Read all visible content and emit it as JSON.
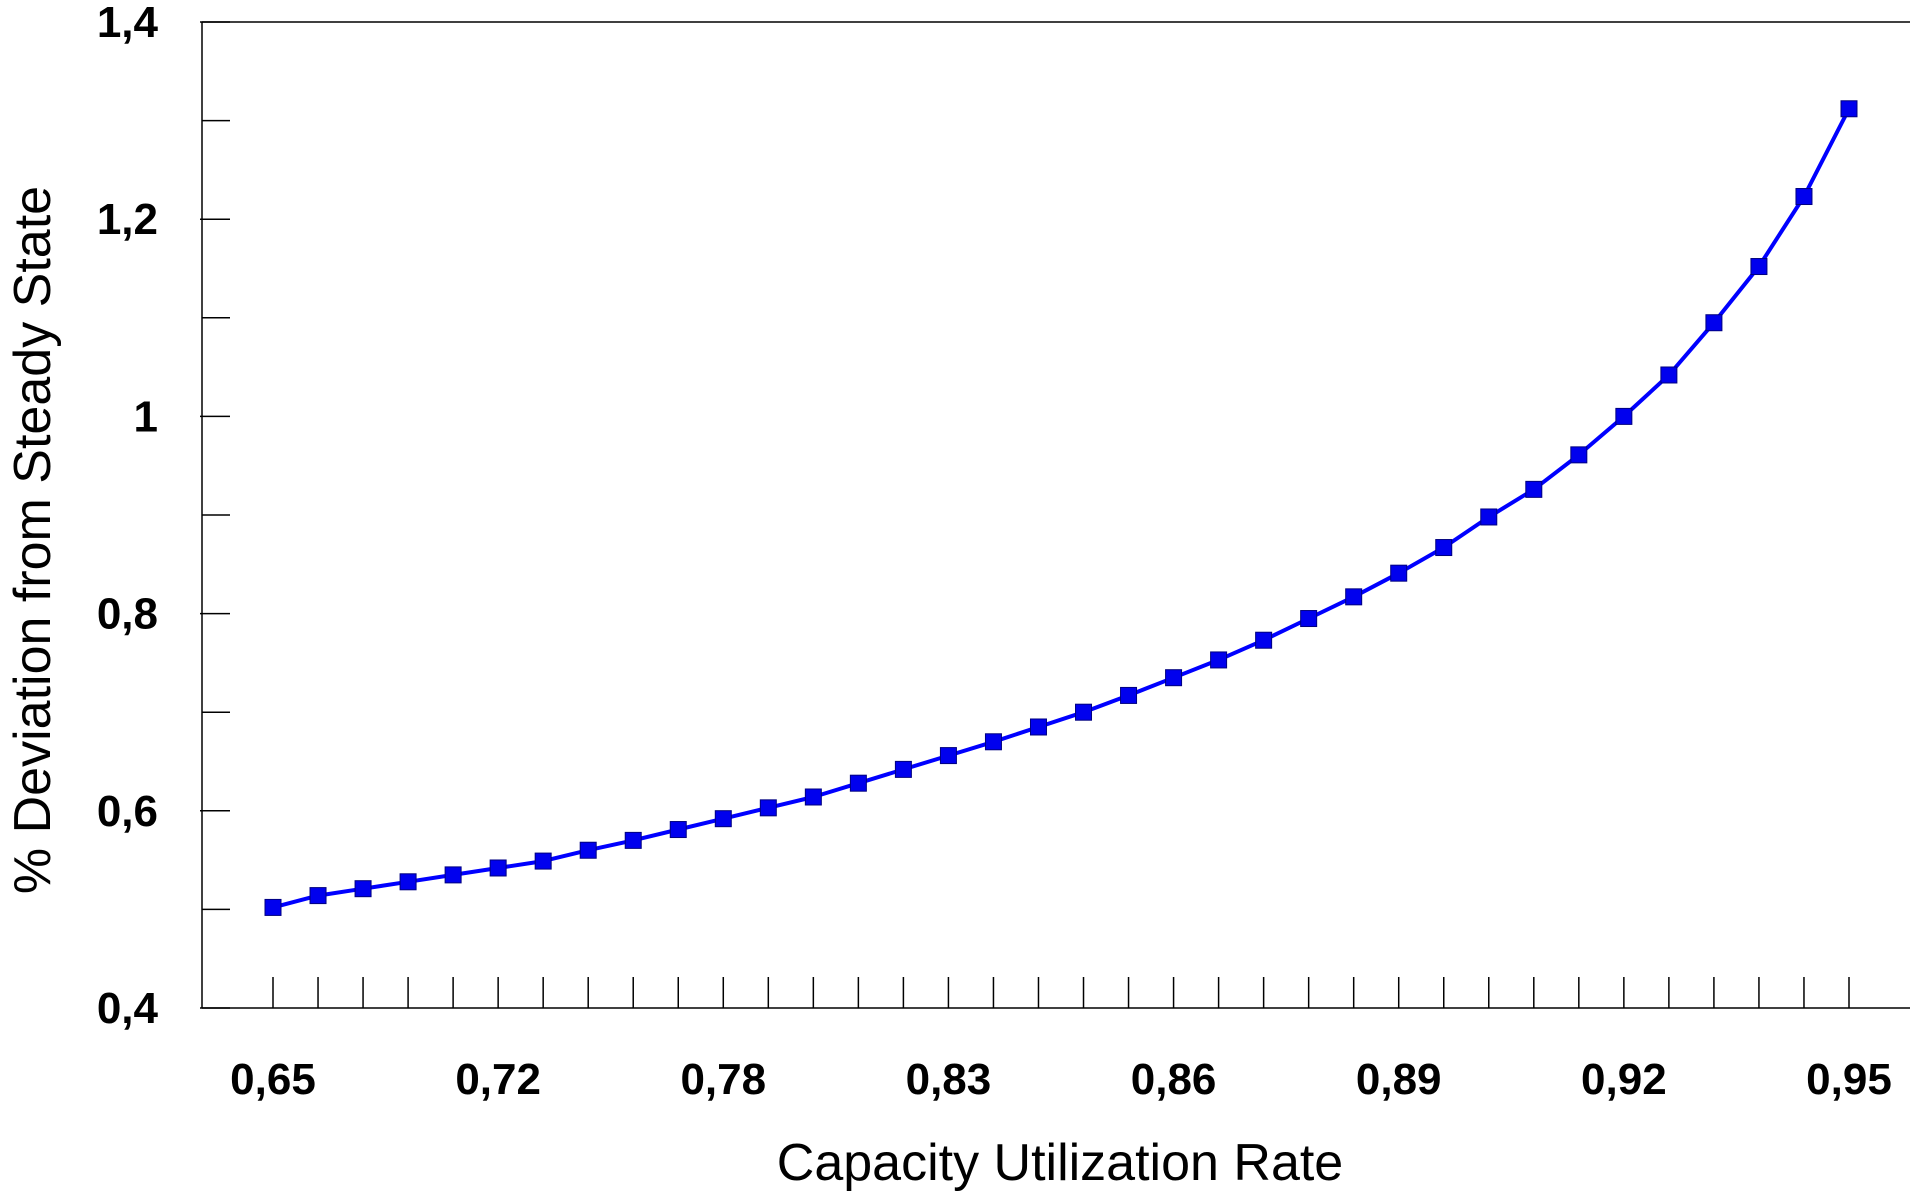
{
  "chart_data": {
    "type": "line",
    "title": "",
    "xlabel": "Capacity Utilization Rate",
    "ylabel": "% Deviation from Steady State",
    "ylim": [
      0.4,
      1.4
    ],
    "y_tick_labels": [
      {
        "value": 1.4,
        "label": "1,4"
      },
      {
        "value": 1.2,
        "label": "1,2"
      },
      {
        "value": 1.0,
        "label": "1"
      },
      {
        "value": 0.8,
        "label": "0,8"
      },
      {
        "value": 0.6,
        "label": "0,6"
      },
      {
        "value": 0.4,
        "label": "0,4"
      }
    ],
    "x_tick_labels": [
      {
        "index": 0,
        "label": "0,65"
      },
      {
        "index": 5,
        "label": "0,72"
      },
      {
        "index": 10,
        "label": "0,78"
      },
      {
        "index": 15,
        "label": "0,83"
      },
      {
        "index": 20,
        "label": "0,86"
      },
      {
        "index": 25,
        "label": "0,89"
      },
      {
        "index": 30,
        "label": "0,92"
      },
      {
        "index": 35,
        "label": "0,95"
      }
    ],
    "series": [
      {
        "color": "#0000ff",
        "marker_color": "#0000ee",
        "values": [
          0.502,
          0.514,
          0.521,
          0.528,
          0.535,
          0.542,
          0.549,
          0.56,
          0.57,
          0.581,
          0.592,
          0.603,
          0.614,
          0.628,
          0.642,
          0.656,
          0.67,
          0.685,
          0.7,
          0.717,
          0.735,
          0.753,
          0.773,
          0.795,
          0.817,
          0.841,
          0.867,
          0.898,
          0.926,
          0.961,
          1.0,
          1.042,
          1.095,
          1.152,
          1.223,
          1.312
        ]
      }
    ],
    "grid": false,
    "legend": "none"
  }
}
